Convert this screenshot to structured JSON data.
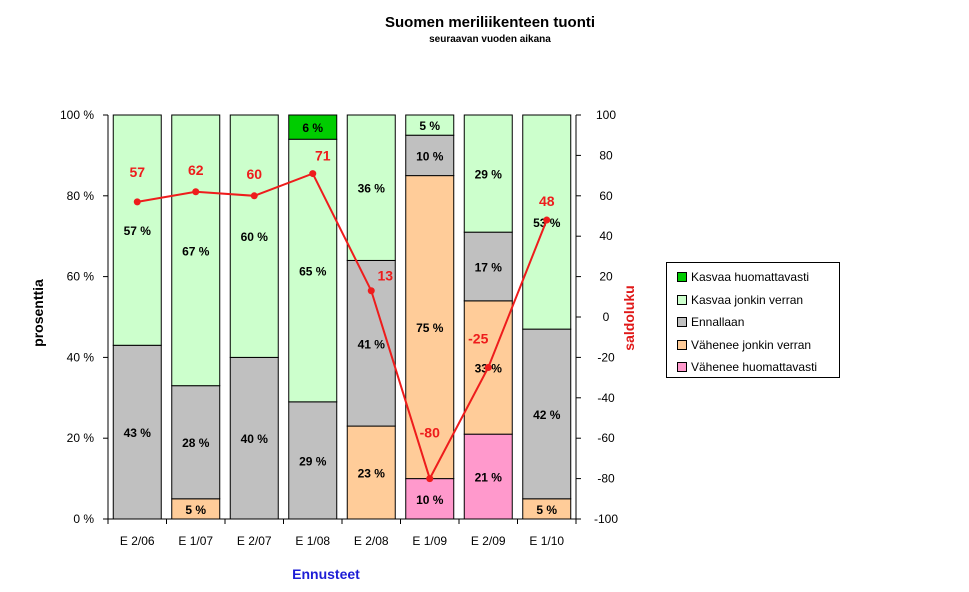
{
  "chart_data": {
    "type": "bar",
    "stacked": true,
    "title": "Suomen meriliikenteen tuonti",
    "subtitle": "seuraavan vuoden aikana",
    "xlabel": "Ennusteet",
    "ylabel": "prosenttia",
    "y2label": "saldoluku",
    "ylim": [
      0,
      100
    ],
    "y2lim": [
      -100,
      100
    ],
    "yticks": [
      "0 %",
      "20 %",
      "40 %",
      "60 %",
      "80 %",
      "100 %"
    ],
    "y2ticks": [
      "-100",
      "-80",
      "-60",
      "-40",
      "-20",
      "0",
      "20",
      "40",
      "60",
      "80",
      "100"
    ],
    "categories": [
      "E 2/06",
      "E 1/07",
      "E 2/07",
      "E 1/08",
      "E 2/08",
      "E 1/09",
      "E 2/09",
      "E 1/10"
    ],
    "series": [
      {
        "name": "Vähenee huomattavasti",
        "color": "#ff99cc",
        "values": [
          0,
          0,
          0,
          0,
          0,
          10,
          21,
          0
        ],
        "labels": [
          "",
          "",
          "",
          "",
          "",
          "10 %",
          "21 %",
          ""
        ]
      },
      {
        "name": "Vähenee jonkin verran",
        "color": "#ffcc99",
        "values": [
          0,
          5,
          0,
          0,
          23,
          75,
          33,
          5
        ],
        "labels": [
          "",
          "5 %",
          "",
          "",
          "23 %",
          "75 %",
          "33 %",
          "5 %"
        ]
      },
      {
        "name": "Ennallaan",
        "color": "#c0c0c0",
        "values": [
          43,
          28,
          40,
          29,
          41,
          10,
          17,
          42
        ],
        "labels": [
          "43 %",
          "28 %",
          "40 %",
          "29 %",
          "41 %",
          "10 %",
          "17 %",
          "42 %"
        ]
      },
      {
        "name": "Kasvaa jonkin verran",
        "color": "#ccffcc",
        "values": [
          57,
          67,
          60,
          65,
          36,
          5,
          29,
          53
        ],
        "labels": [
          "57 %",
          "67 %",
          "60 %",
          "65 %",
          "36 %",
          "5 %",
          "29 %",
          "53 %"
        ]
      },
      {
        "name": "Kasvaa huomattavasti",
        "color": "#00cc00",
        "values": [
          0,
          0,
          0,
          6,
          0,
          0,
          0,
          0
        ],
        "labels": [
          "",
          "",
          "",
          "6 %",
          "",
          "",
          "",
          ""
        ]
      }
    ],
    "line": {
      "name": "saldoluku",
      "color": "#ee1c1c",
      "values": [
        57,
        62,
        60,
        71,
        13,
        -80,
        -25,
        48
      ],
      "labels": [
        "57",
        "62",
        "60",
        "71",
        "13",
        "-80",
        "-25",
        "48"
      ]
    },
    "legend": {
      "position": "right",
      "entries": [
        {
          "name": "Kasvaa huomattavasti",
          "color": "#00cc00"
        },
        {
          "name": "Kasvaa jonkin verran",
          "color": "#ccffcc"
        },
        {
          "name": "Ennallaan",
          "color": "#c0c0c0"
        },
        {
          "name": "Vähenee jonkin verran",
          "color": "#ffcc99"
        },
        {
          "name": "Vähenee huomattavasti",
          "color": "#ff99cc"
        }
      ]
    }
  }
}
